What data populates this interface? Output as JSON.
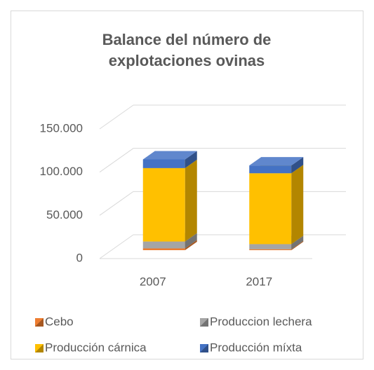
{
  "chart_data": {
    "type": "bar3d_stacked",
    "title": "Balance del número de explotaciones ovinas",
    "categories": [
      "2007",
      "2017"
    ],
    "series": [
      {
        "name": "Cebo",
        "color": "#ed7d31",
        "values": [
          2000,
          1000
        ]
      },
      {
        "name": "Produccion lechera",
        "color": "#a5a5a5",
        "values": [
          8000,
          6000
        ]
      },
      {
        "name": "Producción cárnica",
        "color": "#ffc000",
        "values": [
          85000,
          82000
        ]
      },
      {
        "name": "Producción míxta",
        "color": "#4472c4",
        "values": [
          10000,
          9000
        ]
      }
    ],
    "ylim": [
      0,
      150000
    ],
    "yticks": [
      0,
      {
        "value": 50000,
        "label": "50.000"
      },
      {
        "value": 100000,
        "label": "100.000"
      },
      {
        "value": 150000,
        "label": "150.000"
      }
    ],
    "grid": true,
    "legend": "bottom"
  }
}
